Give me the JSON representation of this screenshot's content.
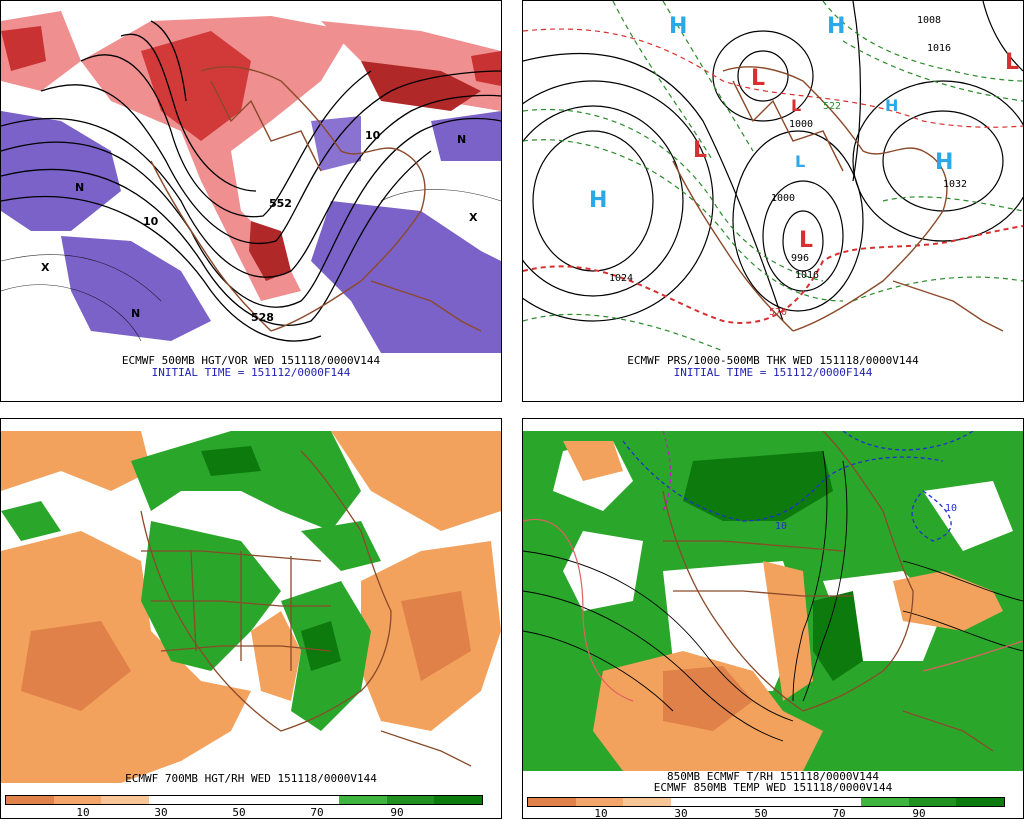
{
  "panels": {
    "p500": {
      "caption": "ECMWF 500MB HGT/VOR WED 151118/0000V144",
      "subcaption": "INITIAL TIME = 151112/0000F144",
      "labels": [
        "552",
        "528",
        "10",
        "10",
        "N",
        "N",
        "N",
        "X",
        "X"
      ]
    },
    "pprs": {
      "caption": "ECMWF PRS/1000-500MB THK WED 151118/0000V144",
      "subcaption": "INITIAL TIME = 151112/0000F144",
      "centers": [
        "H",
        "H",
        "H",
        "H",
        "H",
        "L",
        "L",
        "L",
        "L",
        "L",
        "L"
      ],
      "labels": [
        "1024",
        "1032",
        "1008",
        "1016",
        "1000",
        "1000",
        "996",
        "1016",
        "570",
        "522"
      ]
    },
    "p700": {
      "caption": "ECMWF 700MB HGT/RH WED 151118/0000V144"
    },
    "p850": {
      "caption1": "850MB ECMWF T/RH 151118/0000V144",
      "caption2": "ECMWF 850MB TEMP WED 151118/0000V144",
      "labels": [
        "10",
        "10"
      ]
    }
  },
  "colorbar": {
    "ticks": [
      "10",
      "30",
      "50",
      "70",
      "90"
    ],
    "colors": [
      "#e0814a",
      "#f3a56a",
      "#f8c597",
      "#ffffff",
      "#ffffff",
      "#ffffff",
      "#ffffff",
      "#3fb53f",
      "#219221",
      "#0d7a0d"
    ]
  },
  "colors": {
    "vort_red": "#d23a3a",
    "vort_pink": "#ef8f8f",
    "vort_purple": "#7b62c8",
    "rh_green": "#2aa62a",
    "rh_orange": "#f2a25c",
    "coast": "#8b4a2b"
  }
}
